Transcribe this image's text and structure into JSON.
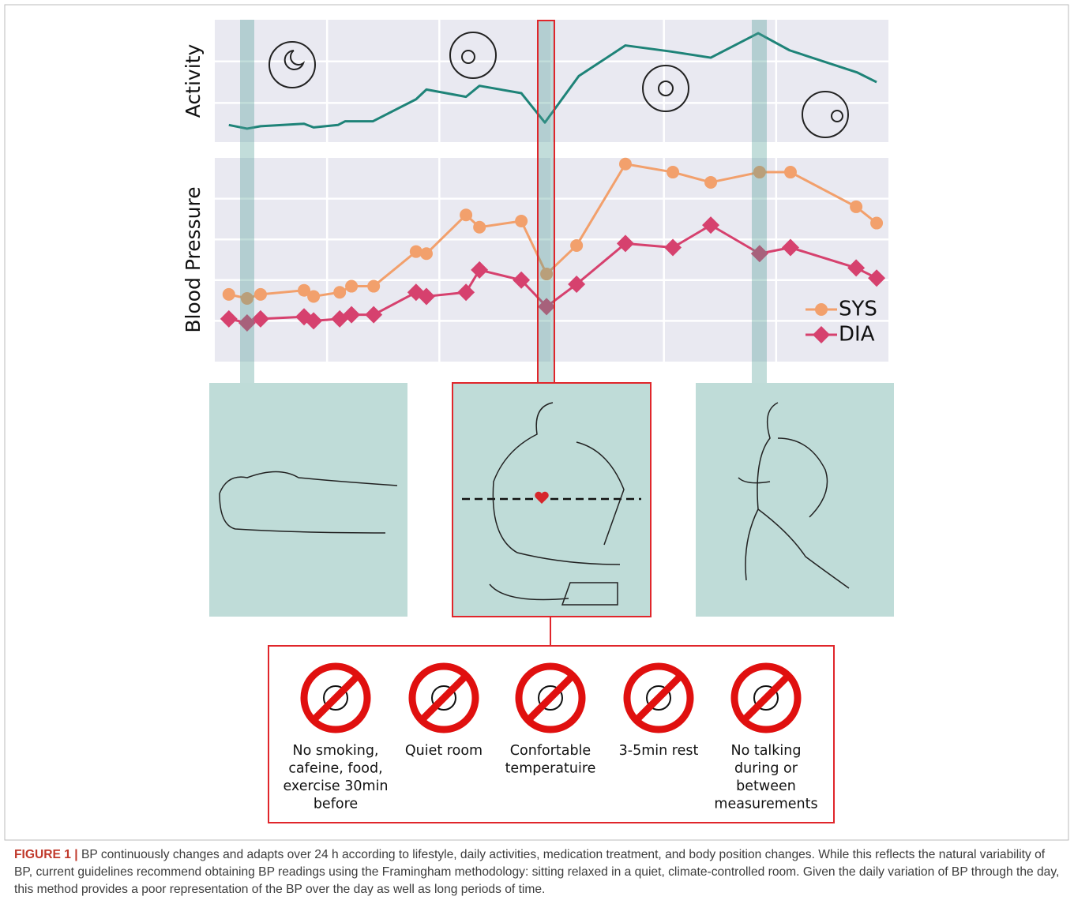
{
  "chart_data": [
    {
      "type": "line",
      "ylabel": "Activity",
      "x": [
        0.5,
        1.15,
        1.63,
        3.18,
        3.52,
        4.39,
        4.64,
        5.63,
        7.17,
        7.54,
        8.95,
        9.43,
        10.92,
        11.76,
        12.97,
        14.63,
        16.26,
        17.67,
        19.36,
        20.48,
        22.88,
        23.58
      ],
      "values": [
        14,
        11,
        13,
        15,
        12,
        14,
        17,
        17,
        35,
        43,
        37,
        46,
        40,
        16,
        54,
        79,
        74,
        69,
        89,
        75,
        57,
        49
      ],
      "color": "#1e8378",
      "xlim": [
        0,
        24
      ],
      "ylim": [
        0,
        100
      ],
      "xticks": [
        4,
        8,
        12,
        16,
        20
      ],
      "yticks": [
        32,
        66
      ],
      "grid": true
    },
    {
      "type": "line",
      "ylabel": "Blood Pressure",
      "x": [
        0.5,
        1.15,
        1.63,
        3.18,
        3.52,
        4.45,
        4.87,
        5.66,
        7.17,
        7.54,
        8.95,
        9.43,
        10.92,
        11.82,
        12.89,
        14.63,
        16.32,
        17.67,
        19.41,
        20.51,
        22.85,
        23.58
      ],
      "series": [
        {
          "name": "SYS",
          "color": "#f2a06c",
          "marker": "circle",
          "values": [
            33,
            31,
            33,
            35,
            32,
            34,
            37,
            37,
            54,
            53,
            72,
            66,
            69,
            43,
            57,
            97,
            93,
            88,
            93,
            93,
            76,
            68
          ]
        },
        {
          "name": "DIA",
          "color": "#d6416e",
          "marker": "diamond",
          "values": [
            21,
            19,
            21,
            22,
            20,
            21,
            23,
            23,
            34,
            32,
            34,
            45,
            40,
            27,
            38,
            58,
            56,
            67,
            53,
            56,
            46,
            41
          ]
        }
      ],
      "xlim": [
        0,
        24
      ],
      "ylim": [
        0,
        100
      ],
      "xticks": [
        4,
        8,
        12,
        16,
        20
      ],
      "yticks": [
        20,
        40,
        60,
        80
      ],
      "grid": true,
      "legend": "lower right"
    }
  ],
  "guidelines": [
    {
      "label": [
        "No smoking,",
        "cafeine, food,",
        "exercise 30min",
        "before"
      ]
    },
    {
      "label": [
        "Quiet room"
      ]
    },
    {
      "label": [
        "Confortable",
        "temperatuire"
      ]
    },
    {
      "label": [
        "3-5min rest"
      ]
    },
    {
      "label": [
        "No talking",
        "during or",
        "between",
        "measurements"
      ]
    }
  ],
  "caption": {
    "label": "FIGURE 1 |",
    "text": "BP continuously changes and adapts over 24 h according to lifestyle, daily activities, medication treatment, and body position changes. While this reflects the natural variability of BP, current guidelines recommend obtaining BP readings using the Framingham methodology: sitting relaxed in a quiet, climate-controlled room. Given the daily variation of BP through the day, this method provides a poor representation of the BP over the day as well as long periods of time."
  }
}
